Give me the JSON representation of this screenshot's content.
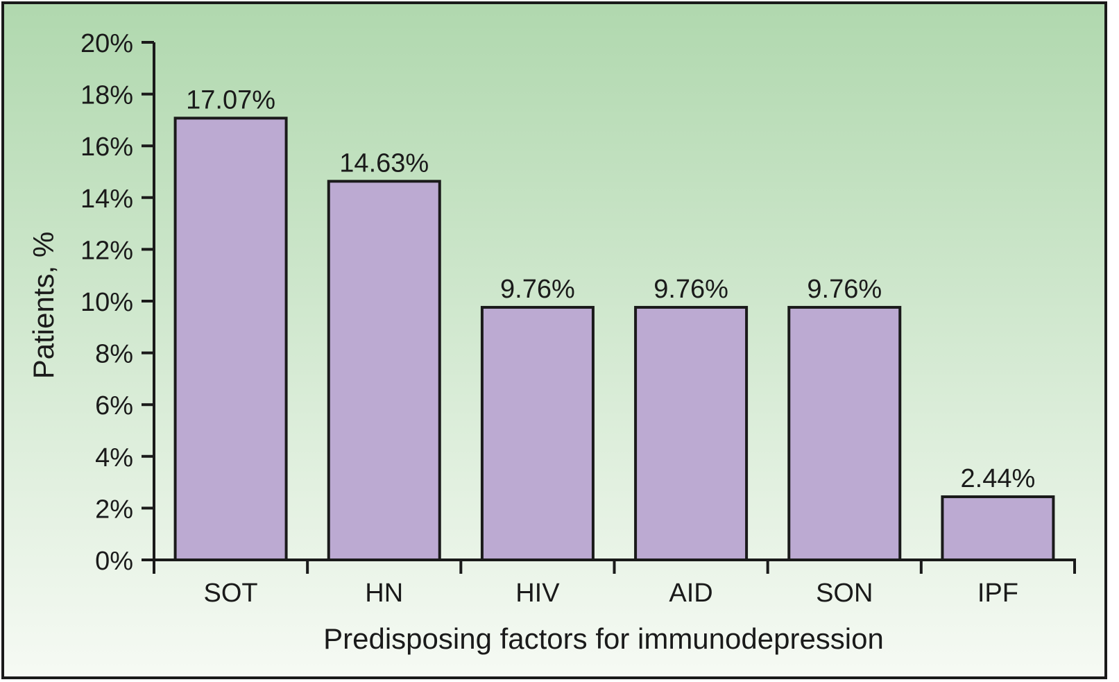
{
  "chart_data": {
    "type": "bar",
    "title": "",
    "xlabel": "Predisposing factors for immunodepression",
    "ylabel": "Patients, %",
    "categories": [
      "SOT",
      "HN",
      "HIV",
      "AID",
      "SON",
      "IPF"
    ],
    "values": [
      17.07,
      14.63,
      9.76,
      9.76,
      9.76,
      2.44
    ],
    "data_labels": [
      "17.07%",
      "14.63%",
      "9.76%",
      "9.76%",
      "9.76%",
      "2.44%"
    ],
    "ylim": [
      0,
      20
    ],
    "yticks": [
      0,
      2,
      4,
      6,
      8,
      10,
      12,
      14,
      16,
      18,
      20
    ],
    "ytick_labels": [
      "0%",
      "2%",
      "4%",
      "6%",
      "8%",
      "10%",
      "12%",
      "14%",
      "16%",
      "18%",
      "20%"
    ],
    "grid": false,
    "legend": "none",
    "colors": {
      "bar_fill": "#bcaad2",
      "bar_stroke": "#1a1a1a",
      "background_top": "#b0d8ae",
      "background_bottom": "#f6faf4"
    }
  }
}
